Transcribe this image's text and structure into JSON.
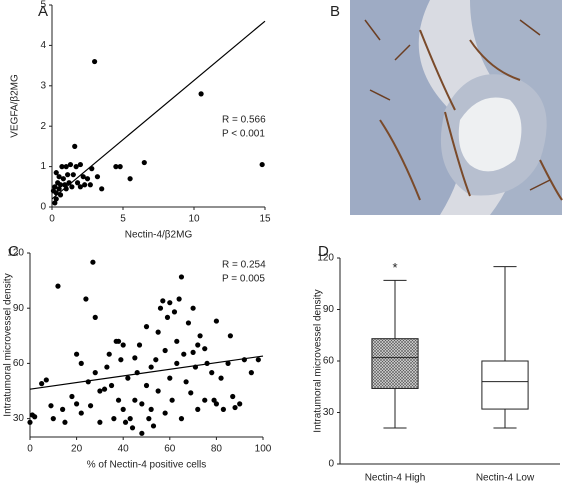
{
  "chart_data": [
    {
      "type": "scatter",
      "panel_label": "A",
      "xlabel": "Nectin-4/β2MG",
      "ylabel": "VEGFA/β2MG",
      "xlim": [
        0,
        15
      ],
      "ylim": [
        0,
        5
      ],
      "xticks": [
        0,
        5,
        10,
        15
      ],
      "yticks": [
        0,
        1,
        2,
        3,
        4,
        5
      ],
      "color": "#000000",
      "x": [
        3.0,
        10.5,
        14.8,
        6.5,
        4.5,
        4.8,
        5.5,
        3.5,
        2.8,
        1.6,
        1.7,
        2.0,
        1.3,
        1.0,
        0.7,
        0.3,
        0.5,
        0.8,
        1.1,
        1.5,
        2.2,
        2.5,
        0.4,
        0.6,
        0.9,
        1.2,
        1.8,
        2.3,
        0.2,
        0.5,
        1.0,
        1.4,
        2.0,
        2.7,
        0.3,
        0.6,
        0.3,
        0.2,
        0.1,
        3.2
      ],
      "values": [
        3.6,
        2.8,
        1.05,
        1.1,
        1.0,
        1.0,
        0.7,
        0.45,
        0.95,
        1.5,
        1.0,
        1.05,
        1.05,
        1.0,
        1.0,
        0.85,
        0.75,
        0.7,
        0.8,
        0.8,
        0.75,
        0.7,
        0.6,
        0.55,
        0.55,
        0.6,
        0.6,
        0.55,
        0.5,
        0.45,
        0.45,
        0.5,
        0.5,
        0.55,
        0.35,
        0.3,
        0.2,
        0.1,
        0.4,
        0.75
      ],
      "fit": {
        "x": [
          0,
          15
        ],
        "values": [
          0.2,
          4.6
        ]
      },
      "annotations": [
        "R = 0.566",
        "P < 0.001"
      ]
    },
    {
      "type": "scatter",
      "panel_label": "C",
      "xlabel": "% of Nectin-4 positive cells",
      "ylabel": "Intratumoral microvessel density",
      "xlim": [
        0,
        100
      ],
      "ylim": [
        20,
        120
      ],
      "xticks": [
        0,
        20,
        40,
        60,
        80,
        100
      ],
      "yticks": [
        30,
        60,
        90,
        120
      ],
      "color": "#000000",
      "x": [
        0,
        1,
        2,
        5,
        7,
        9,
        10,
        12,
        14,
        15,
        18,
        20,
        20,
        22,
        22,
        24,
        25,
        26,
        27,
        28,
        28,
        30,
        30,
        32,
        33,
        34,
        35,
        36,
        37,
        38,
        38,
        39,
        40,
        40,
        41,
        42,
        43,
        44,
        45,
        45,
        46,
        47,
        48,
        48,
        50,
        50,
        51,
        52,
        52,
        53,
        54,
        55,
        55,
        56,
        57,
        58,
        58,
        59,
        60,
        60,
        61,
        62,
        63,
        63,
        64,
        65,
        65,
        66,
        67,
        68,
        69,
        70,
        70,
        71,
        72,
        72,
        73,
        75,
        75,
        76,
        78,
        79,
        80,
        80,
        82,
        83,
        85,
        86,
        87,
        88,
        90,
        92,
        95,
        98
      ],
      "values": [
        28,
        32,
        31,
        49,
        51,
        37,
        30,
        102,
        35,
        28,
        42,
        65,
        38,
        60,
        33,
        95,
        50,
        37,
        115,
        55,
        85,
        45,
        28,
        46,
        58,
        65,
        48,
        30,
        72,
        72,
        40,
        62,
        70,
        35,
        28,
        52,
        30,
        25,
        63,
        40,
        55,
        70,
        22,
        38,
        48,
        80,
        30,
        35,
        58,
        26,
        62,
        77,
        45,
        90,
        94,
        33,
        67,
        85,
        93,
        52,
        40,
        88,
        72,
        60,
        95,
        30,
        107,
        65,
        50,
        82,
        44,
        66,
        90,
        58,
        70,
        35,
        75,
        68,
        40,
        60,
        55,
        40,
        83,
        38,
        52,
        35,
        60,
        75,
        42,
        36,
        38,
        62,
        55,
        62
      ],
      "fit": {
        "x": [
          0,
          100
        ],
        "values": [
          46,
          64
        ]
      },
      "annotations": [
        "R = 0.254",
        "P = 0.005"
      ]
    },
    {
      "type": "box",
      "panel_label": "D",
      "ylabel": "Intratumoral microvessel density",
      "ylim": [
        0,
        120
      ],
      "yticks": [
        0,
        30,
        60,
        90,
        120
      ],
      "categories": [
        "Nectin-4 High",
        "Nectin-4 Low"
      ],
      "boxes": [
        {
          "min": 21,
          "q1": 44,
          "median": 62,
          "q3": 73,
          "max": 107,
          "fill": "hatch",
          "annotation": "*"
        },
        {
          "min": 21,
          "q1": 32,
          "median": 48,
          "q3": 60,
          "max": 115,
          "fill": "#ffffff"
        }
      ]
    }
  ],
  "image_panel": {
    "label": "B"
  }
}
